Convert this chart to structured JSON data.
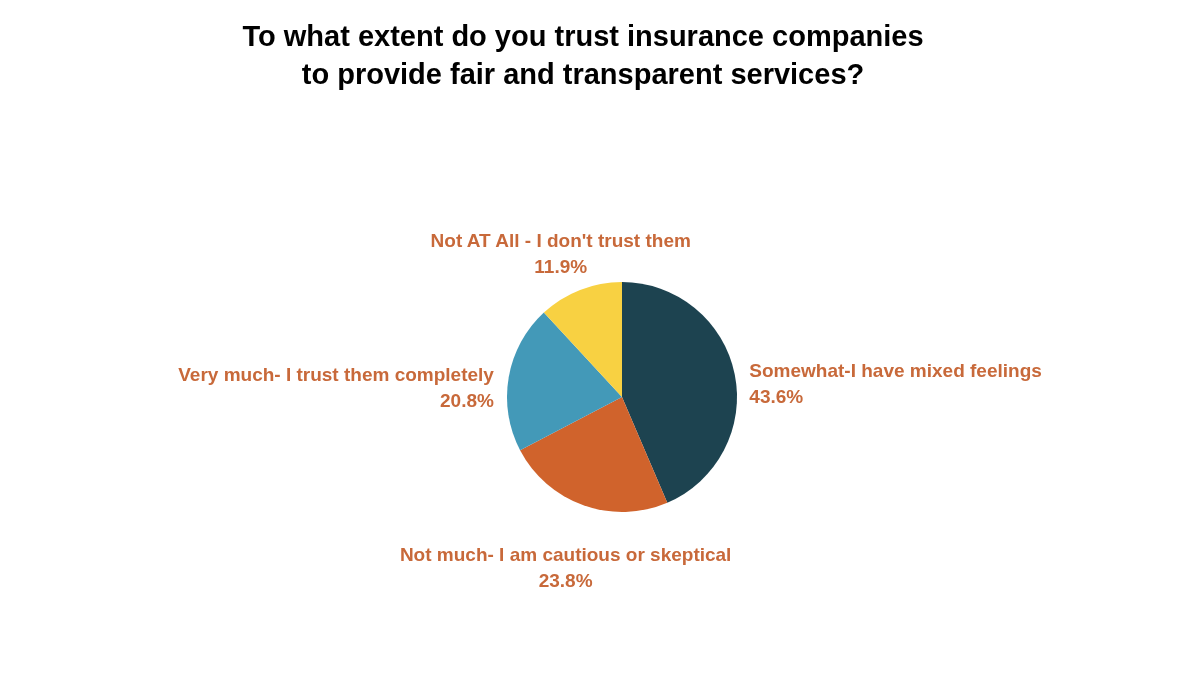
{
  "chart_data": {
    "type": "pie",
    "title": "To what extent do you trust insurance companies to provide fair and transparent services?",
    "categories": [
      "Somewhat-I have mixed feelings",
      "Not much- I am cautious or skeptical",
      "Very much- I trust them completely",
      "Not AT All - I don't trust them"
    ],
    "values": [
      43.6,
      23.8,
      20.8,
      11.9
    ],
    "value_labels": [
      "43.6%",
      "23.8%",
      "20.8%",
      "11.9%"
    ],
    "colors": [
      "#1d4350",
      "#d0632c",
      "#4399b8",
      "#f8d142"
    ],
    "legend": false
  }
}
